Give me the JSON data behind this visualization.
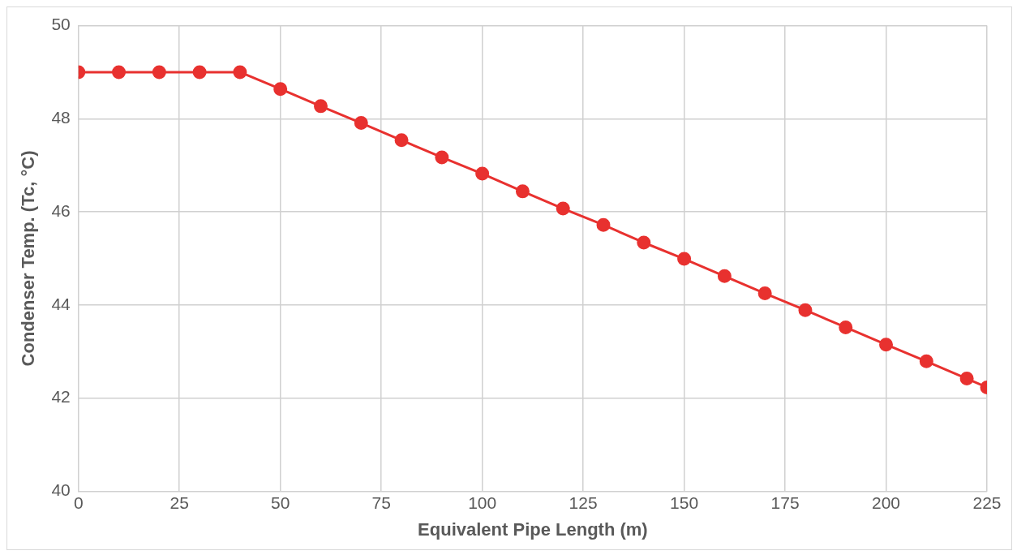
{
  "chart_data": {
    "type": "line",
    "xlabel": "Equivalent Pipe Length (m)",
    "ylabel": "Condenser Temp. (Tc, °C)",
    "x": [
      0,
      10,
      20,
      30,
      40,
      50,
      60,
      70,
      80,
      90,
      100,
      110,
      120,
      130,
      140,
      150,
      160,
      170,
      180,
      190,
      200,
      210,
      220,
      225
    ],
    "series": [
      {
        "color": "#e8312f",
        "values": [
          49,
          49,
          49,
          49,
          49,
          48.64,
          48.27,
          47.91,
          47.54,
          47.17,
          46.82,
          46.44,
          46.07,
          45.72,
          45.34,
          44.99,
          44.62,
          44.25,
          43.89,
          43.52,
          43.15,
          42.79,
          42.42,
          42.23
        ]
      }
    ],
    "xlim": [
      0,
      225
    ],
    "xticks": [
      0,
      25,
      50,
      75,
      100,
      125,
      150,
      175,
      200,
      225
    ],
    "ylim": [
      40,
      50
    ],
    "yticks": [
      40,
      42,
      44,
      46,
      48,
      50
    ],
    "grid": true,
    "legend": false,
    "marker": "circle",
    "line_style": "solid"
  }
}
